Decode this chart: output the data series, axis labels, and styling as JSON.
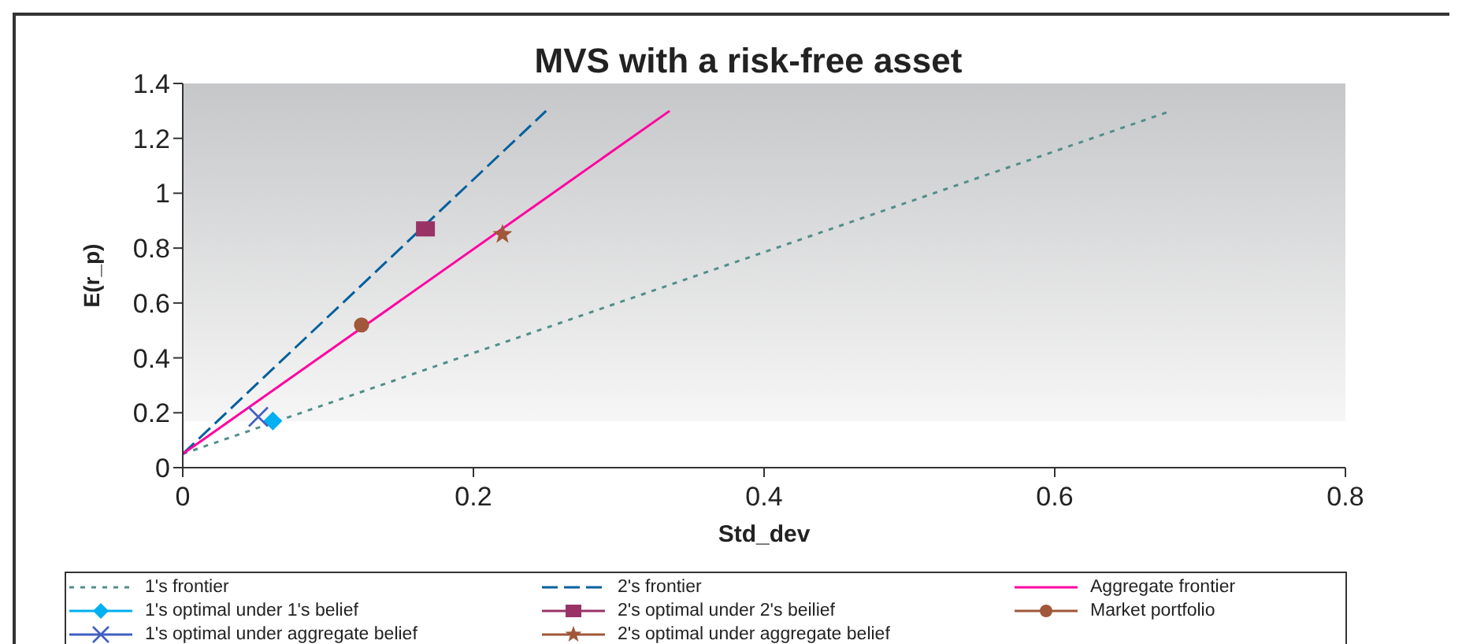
{
  "chart_data": {
    "type": "line",
    "title": "MVS with a risk-free asset",
    "xlabel": "Std_dev",
    "ylabel": "E(r_p)",
    "xlim": [
      0,
      0.8
    ],
    "xticks": [
      0,
      0.2,
      0.4,
      0.6,
      0.8
    ],
    "ylim": [
      0,
      1.4
    ],
    "yticks": [
      0,
      0.2,
      0.4,
      0.6,
      0.8,
      1,
      1.2,
      1.4
    ],
    "grid": false,
    "legend": "bottom",
    "series": [
      {
        "name": "1's frontier",
        "line_style": "dotted",
        "color": "#4f8f8a",
        "x": [
          0,
          0.68
        ],
        "values": [
          0.05,
          1.3
        ]
      },
      {
        "name": "2's frontier",
        "line_style": "dashed",
        "color": "#00609c",
        "x": [
          0,
          0.25
        ],
        "values": [
          0.05,
          1.3
        ]
      },
      {
        "name": "Aggregate frontier",
        "line_style": "solid",
        "color": "#ff00a0",
        "x": [
          0,
          0.335
        ],
        "values": [
          0.05,
          1.3
        ]
      },
      {
        "name": "1's optimal under 1's belief",
        "type": "scatter",
        "marker": "diamond",
        "color": "#00b0f0",
        "x": [
          0.062
        ],
        "values": [
          0.17
        ]
      },
      {
        "name": "2's optimal under 2's beilief",
        "type": "scatter",
        "marker": "square",
        "color": "#993366",
        "x": [
          0.167
        ],
        "values": [
          0.87
        ]
      },
      {
        "name": "Market portfolio",
        "type": "scatter",
        "marker": "circle",
        "color": "#a0573a",
        "x": [
          0.123
        ],
        "values": [
          0.52
        ]
      },
      {
        "name": "1's optimal under aggregate belief",
        "type": "scatter",
        "marker": "cross",
        "color": "#4060c0",
        "x": [
          0.052
        ],
        "values": [
          0.185
        ]
      },
      {
        "name": "2's optimal under aggregate belief",
        "type": "scatter",
        "marker": "star",
        "color": "#a0573a",
        "x": [
          0.22
        ],
        "values": [
          0.85
        ]
      }
    ]
  }
}
